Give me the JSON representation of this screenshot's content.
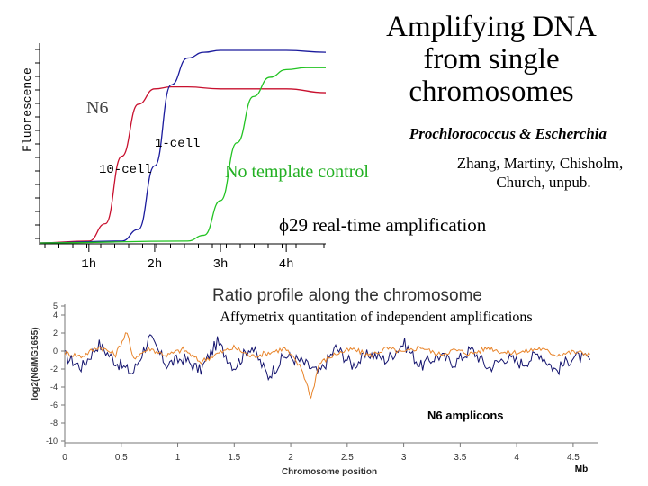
{
  "slide": {
    "title_lines": [
      "Amplifying DNA",
      "from single",
      "chromosomes"
    ],
    "organisms": "Prochlorococcus & Escherchia",
    "authors_lines": [
      "Zhang, Martiny, Chisholm,",
      "Church, unpub."
    ],
    "realtime_caption": "ϕ29 real-time amplification",
    "affy_caption": "Affymetrix quantitation of independent amplifications"
  },
  "colors": {
    "red": "#c8102e",
    "blue": "#1a1a9c",
    "green": "#22c322",
    "navy": "#14146e",
    "orange": "#e8842a"
  },
  "chart_data": [
    {
      "type": "line",
      "ylabel": "Fluorescence",
      "xlabel": "",
      "x_ticks": [
        "1h",
        "2h",
        "3h",
        "4h"
      ],
      "x_tick_values": [
        1,
        2,
        3,
        4
      ],
      "xlim": [
        0.25,
        4.6
      ],
      "ylim": [
        0,
        1
      ],
      "annotations": {
        "primer": "N6",
        "one_cell": "1-cell",
        "ten_cell": "10-cell",
        "ntc": "No template control"
      },
      "series": [
        {
          "name": "10-cell",
          "color": "#c8102e",
          "x": [
            0.25,
            1.0,
            1.25,
            1.5,
            1.75,
            2.0,
            2.25,
            2.5,
            3.0,
            3.5,
            4.0,
            4.6
          ],
          "y": [
            0.0,
            0.01,
            0.1,
            0.45,
            0.72,
            0.8,
            0.81,
            0.81,
            0.8,
            0.8,
            0.8,
            0.78
          ]
        },
        {
          "name": "1-cell",
          "color": "#1a1a9c",
          "x": [
            0.25,
            1.5,
            1.75,
            2.0,
            2.25,
            2.5,
            2.75,
            3.0,
            3.5,
            4.0,
            4.6
          ],
          "y": [
            0.0,
            0.01,
            0.07,
            0.4,
            0.82,
            0.96,
            0.99,
            1.0,
            1.0,
            1.0,
            0.99
          ]
        },
        {
          "name": "No template control",
          "color": "#22c322",
          "x": [
            0.25,
            2.5,
            2.75,
            3.0,
            3.25,
            3.5,
            3.75,
            4.0,
            4.3,
            4.6
          ],
          "y": [
            0.0,
            0.01,
            0.04,
            0.22,
            0.52,
            0.76,
            0.86,
            0.9,
            0.91,
            0.91
          ]
        }
      ]
    },
    {
      "type": "line",
      "title": "Ratio profile along the chromosome",
      "xlabel": "Chromosome position",
      "x_unit": "Mb",
      "ylabel": "log2(N6/MG1655)",
      "xlim": [
        0,
        4.7
      ],
      "ylim": [
        -10,
        5
      ],
      "x_ticks": [
        "0",
        "0.5",
        "1",
        "1.5",
        "2",
        "2.5",
        "3",
        "3.5",
        "4",
        "4.5"
      ],
      "x_tick_values": [
        0,
        0.5,
        1,
        1.5,
        2,
        2.5,
        3,
        3.5,
        4,
        4.5
      ],
      "y_ticks": [
        "5",
        "4",
        "2",
        "0",
        "-2",
        "-4",
        "-6",
        "-8",
        "-10"
      ],
      "y_tick_values": [
        5,
        4,
        2,
        0,
        -2,
        -4,
        -6,
        -8,
        -10
      ],
      "legend_entry": "N6 amplicons",
      "series": [
        {
          "color": "#14146e",
          "x": [
            0.0,
            0.15,
            0.3,
            0.45,
            0.6,
            0.75,
            0.9,
            1.05,
            1.2,
            1.35,
            1.5,
            1.65,
            1.8,
            1.95,
            2.1,
            2.25,
            2.4,
            2.55,
            2.7,
            2.85,
            3.0,
            3.15,
            3.3,
            3.45,
            3.6,
            3.75,
            3.9,
            4.05,
            4.2,
            4.35,
            4.5,
            4.65
          ],
          "y": [
            -0.5,
            -1.8,
            0.8,
            -1.2,
            -2.5,
            1.5,
            -1.5,
            -0.8,
            -2.2,
            1.0,
            -1.8,
            0.6,
            -2.8,
            -0.5,
            -1.2,
            -2.5,
            0.4,
            -1.6,
            -0.3,
            -1.0,
            0.9,
            -1.7,
            -0.5,
            -1.3,
            0.2,
            -1.9,
            -0.7,
            -1.4,
            -0.2,
            -2.2,
            -0.6,
            -1.0
          ]
        },
        {
          "color": "#e8842a",
          "x": [
            0.0,
            0.15,
            0.3,
            0.45,
            0.55,
            0.6,
            0.75,
            0.9,
            1.05,
            1.2,
            1.35,
            1.5,
            1.65,
            1.8,
            1.95,
            2.1,
            2.18,
            2.25,
            2.4,
            2.55,
            2.7,
            2.85,
            3.0,
            3.15,
            3.3,
            3.45,
            3.6,
            3.75,
            3.9,
            4.05,
            4.2,
            4.35,
            4.5,
            4.65
          ],
          "y": [
            -0.2,
            -0.6,
            0.5,
            -0.4,
            2.2,
            -0.8,
            0.3,
            -0.5,
            0.2,
            -1.2,
            -0.3,
            0.4,
            -0.6,
            -0.2,
            0.3,
            -2.0,
            -5.2,
            -1.4,
            -0.3,
            0.2,
            -0.5,
            0.3,
            -0.2,
            0.5,
            -0.4,
            0.1,
            -0.3,
            0.4,
            -0.2,
            -0.1,
            0.3,
            -0.4,
            -0.1,
            -0.3
          ]
        }
      ]
    }
  ]
}
